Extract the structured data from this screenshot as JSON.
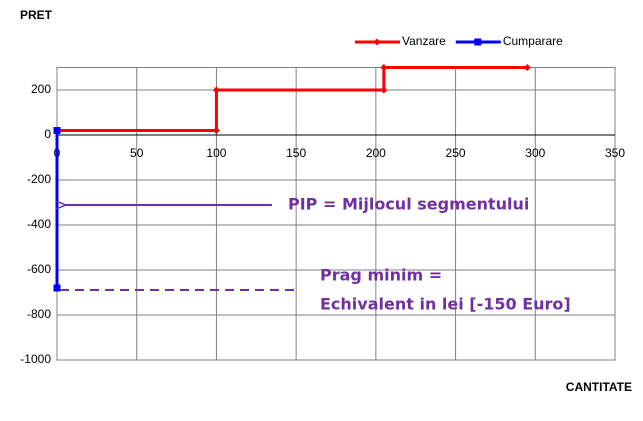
{
  "chart_data": {
    "type": "line",
    "ylabel": "PRET",
    "xlabel": "CANTITATE",
    "series": [
      {
        "name": "Vanzare",
        "color": "#ff0000",
        "x": [
          0,
          100,
          100,
          205,
          205,
          295
        ],
        "values": [
          20,
          20,
          200,
          200,
          300,
          300
        ]
      },
      {
        "name": "Cumparare",
        "color": "#0000ff",
        "x": [
          0,
          0
        ],
        "values": [
          20,
          -680
        ]
      }
    ],
    "xlim": [
      0,
      350
    ],
    "xticks": [
      0,
      50,
      100,
      150,
      200,
      250,
      300,
      350
    ],
    "ylim": [
      -1000,
      300
    ],
    "yticks": [
      -1000,
      -800,
      -600,
      -400,
      -200,
      0,
      200
    ],
    "grid": true,
    "legend": "top-right",
    "annotations": [
      "PIP = Mijlocul segmentului",
      "Prag minim =",
      "Echivalent in lei [-150 Euro]"
    ]
  }
}
